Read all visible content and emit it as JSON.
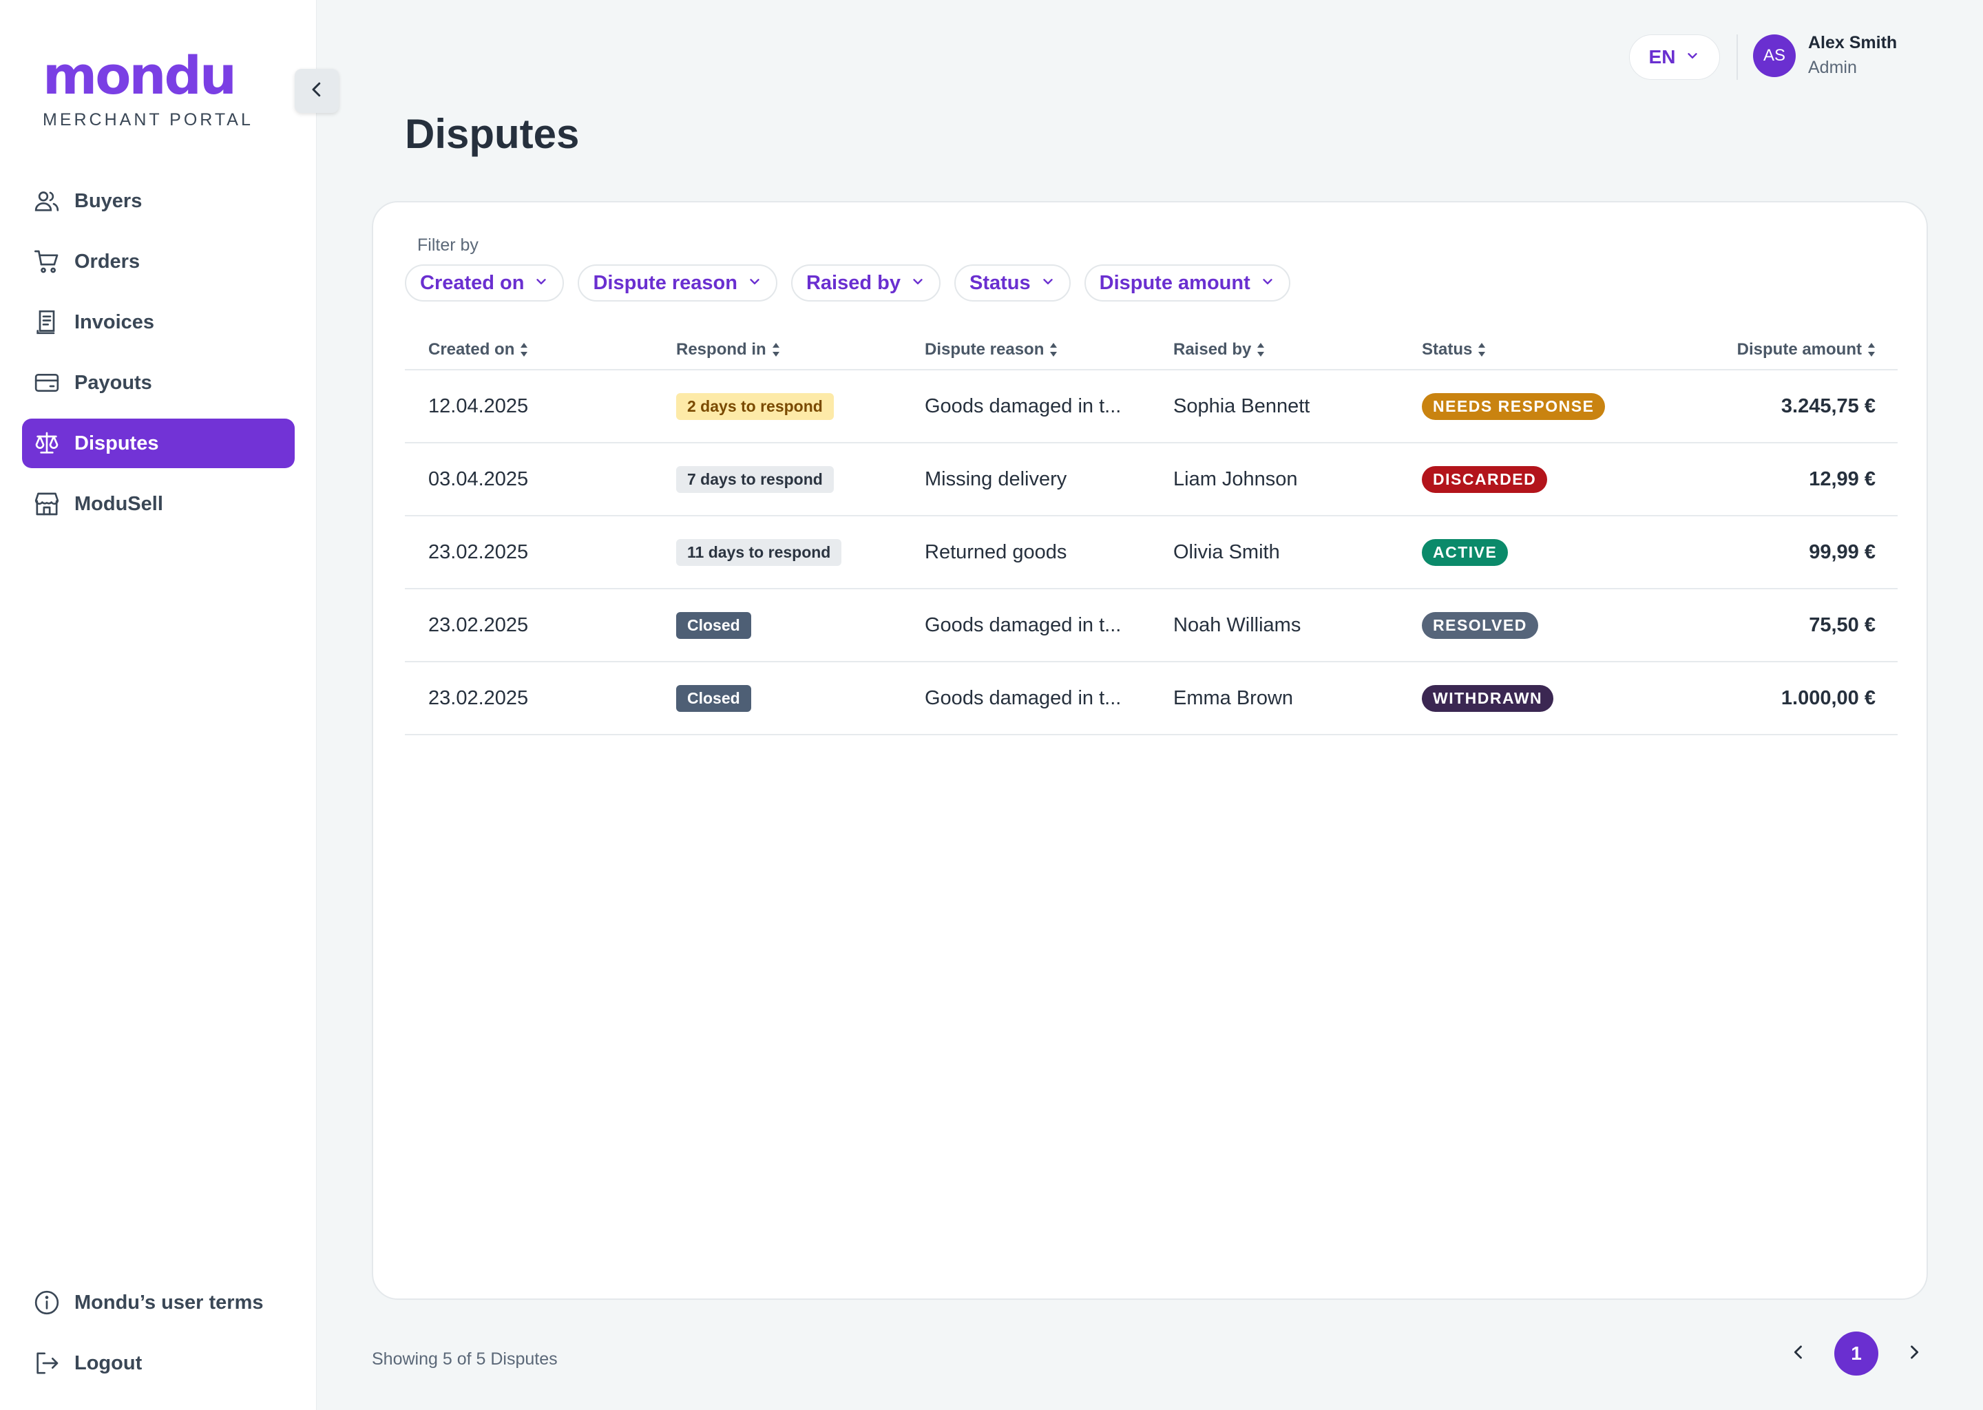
{
  "brand": {
    "name": "mondu",
    "subtitle": "MERCHANT PORTAL"
  },
  "nav": {
    "items": [
      {
        "label": "Buyers",
        "icon": "users-icon",
        "active": false
      },
      {
        "label": "Orders",
        "icon": "cart-icon",
        "active": false
      },
      {
        "label": "Invoices",
        "icon": "receipt-icon",
        "active": false
      },
      {
        "label": "Payouts",
        "icon": "wallet-icon",
        "active": false
      },
      {
        "label": "Disputes",
        "icon": "scale-icon",
        "active": true
      },
      {
        "label": "ModuSell",
        "icon": "store-icon",
        "active": false
      }
    ],
    "bottom": [
      {
        "label": "Mondu’s user terms",
        "icon": "info-icon"
      },
      {
        "label": "Logout",
        "icon": "logout-icon"
      }
    ]
  },
  "header": {
    "language": "EN",
    "user": {
      "initials": "AS",
      "name": "Alex Smith",
      "role": "Admin"
    }
  },
  "page": {
    "title": "Disputes"
  },
  "filters": {
    "label": "Filter by",
    "chips": [
      "Created on",
      "Dispute reason",
      "Raised by",
      "Status",
      "Dispute amount"
    ]
  },
  "table": {
    "columns": [
      "Created on",
      "Respond in",
      "Dispute reason",
      "Raised by",
      "Status",
      "Dispute amount"
    ],
    "rows": [
      {
        "created": "12.04.2025",
        "respond": "2 days to respond",
        "respond_style": "yellow",
        "reason": "Goods damaged in t...",
        "raised_by": "Sophia Bennett",
        "status": "NEEDS RESPONSE",
        "status_color": "#c98310",
        "amount": "3.245,75 €"
      },
      {
        "created": "03.04.2025",
        "respond": "7 days to respond",
        "respond_style": "gray",
        "reason": "Missing delivery",
        "raised_by": "Liam Johnson",
        "status": "DISCARDED",
        "status_color": "#b3141b",
        "amount": "12,99 €"
      },
      {
        "created": "23.02.2025",
        "respond": "11 days to respond",
        "respond_style": "gray",
        "reason": "Returned goods",
        "raised_by": "Olivia Smith",
        "status": "ACTIVE",
        "status_color": "#0b8a6a",
        "amount": "99,99 €"
      },
      {
        "created": "23.02.2025",
        "respond": "Closed",
        "respond_style": "closed",
        "reason": "Goods damaged in t...",
        "raised_by": "Noah Williams",
        "status": "RESOLVED",
        "status_color": "#56657a",
        "amount": "75,50 €"
      },
      {
        "created": "23.02.2025",
        "respond": "Closed",
        "respond_style": "closed",
        "reason": "Goods damaged in t...",
        "raised_by": "Emma Brown",
        "status": "WITHDRAWN",
        "status_color": "#3b2752",
        "amount": "1.000,00 €"
      }
    ]
  },
  "footer": {
    "showing": "Showing 5 of 5 Disputes",
    "current_page": "1"
  },
  "colors": {
    "accent": "#6a2fd0",
    "active_nav": "#7233d6"
  }
}
